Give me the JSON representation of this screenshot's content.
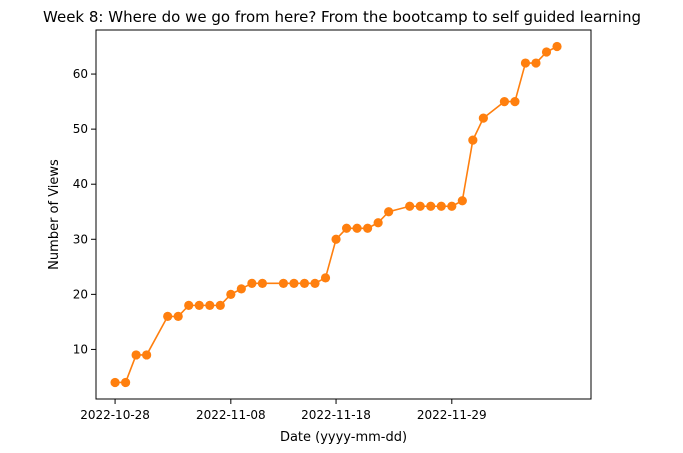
{
  "chart_data": {
    "type": "line",
    "title": "Week 8: Where do we go from here? From the bootcamp to self guided learning",
    "xlabel": "Date (yyyy-mm-dd)",
    "ylabel": "Number of Views",
    "x_is_date": true,
    "xlim": [
      "2022-10-26T04:30:00",
      "2022-12-12T05:30:00"
    ],
    "ylim": [
      1,
      68
    ],
    "x_ticks": [
      "2022-10-28",
      "2022-11-08",
      "2022-11-18",
      "2022-11-29"
    ],
    "y_ticks": [
      10,
      20,
      30,
      40,
      50,
      60
    ],
    "grid": false,
    "legend": "none",
    "series": [
      {
        "color": "#ff7f0e",
        "marker": "circle",
        "points": [
          [
            "2022-10-28",
            4
          ],
          [
            "2022-10-29",
            4
          ],
          [
            "2022-10-30",
            9
          ],
          [
            "2022-10-31",
            9
          ],
          [
            "2022-11-02",
            16
          ],
          [
            "2022-11-03",
            16
          ],
          [
            "2022-11-04",
            18
          ],
          [
            "2022-11-05",
            18
          ],
          [
            "2022-11-06",
            18
          ],
          [
            "2022-11-07",
            18
          ],
          [
            "2022-11-08",
            20
          ],
          [
            "2022-11-09",
            21
          ],
          [
            "2022-11-10",
            22
          ],
          [
            "2022-11-11",
            22
          ],
          [
            "2022-11-13",
            22
          ],
          [
            "2022-11-14",
            22
          ],
          [
            "2022-11-15",
            22
          ],
          [
            "2022-11-16",
            22
          ],
          [
            "2022-11-17",
            23
          ],
          [
            "2022-11-18",
            30
          ],
          [
            "2022-11-19",
            32
          ],
          [
            "2022-11-20",
            32
          ],
          [
            "2022-11-21",
            32
          ],
          [
            "2022-11-22",
            33
          ],
          [
            "2022-11-23",
            35
          ],
          [
            "2022-11-25",
            36
          ],
          [
            "2022-11-26",
            36
          ],
          [
            "2022-11-27",
            36
          ],
          [
            "2022-11-28",
            36
          ],
          [
            "2022-11-29",
            36
          ],
          [
            "2022-11-30",
            37
          ],
          [
            "2022-12-01",
            48
          ],
          [
            "2022-12-02",
            52
          ],
          [
            "2022-12-04",
            55
          ],
          [
            "2022-12-05",
            55
          ],
          [
            "2022-12-06",
            62
          ],
          [
            "2022-12-07",
            62
          ],
          [
            "2022-12-08",
            64
          ],
          [
            "2022-12-09",
            65
          ]
        ]
      }
    ]
  }
}
